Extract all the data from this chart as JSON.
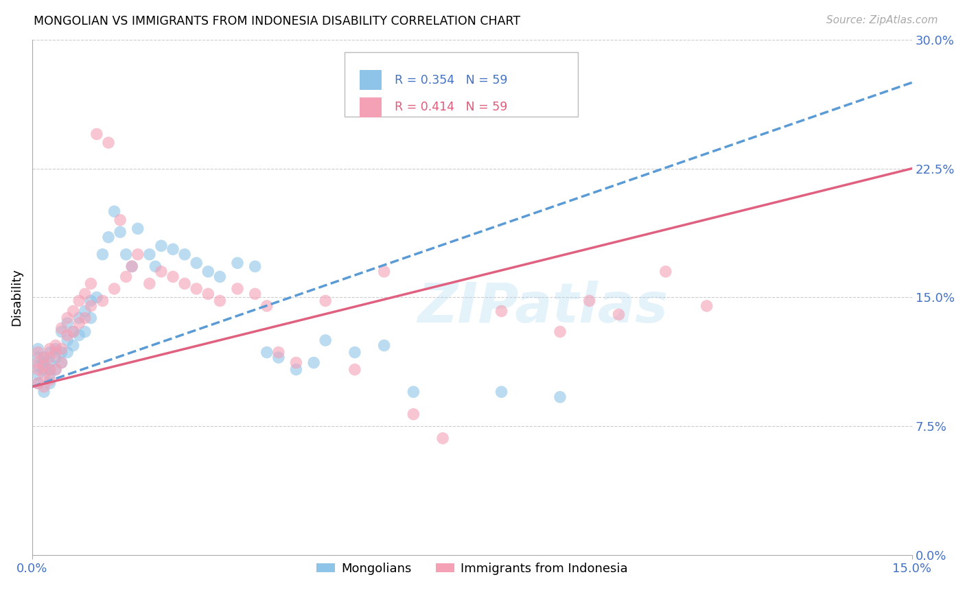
{
  "title": "MONGOLIAN VS IMMIGRANTS FROM INDONESIA DISABILITY CORRELATION CHART",
  "source": "Source: ZipAtlas.com",
  "ylabel": "Disability",
  "x_min": 0.0,
  "x_max": 0.15,
  "y_min": 0.0,
  "y_max": 0.3,
  "x_tick_positions": [
    0.0,
    0.15
  ],
  "x_tick_labels": [
    "0.0%",
    "15.0%"
  ],
  "y_ticks_right": [
    0.0,
    0.075,
    0.15,
    0.225,
    0.3
  ],
  "y_tick_labels_right": [
    "0.0%",
    "7.5%",
    "15.0%",
    "22.5%",
    "30.0%"
  ],
  "legend_r1": "0.354",
  "legend_n1": "59",
  "legend_r2": "0.414",
  "legend_n2": "59",
  "color_blue": "#8ec4e8",
  "color_pink": "#f4a0b5",
  "color_blue_line": "#5b9bd5",
  "color_pink_line": "#e06080",
  "color_blue_text": "#4472c4",
  "color_pink_text": "#e05a7a",
  "grid_color": "#cccccc",
  "watermark": "ZIPatlas",
  "mongolians_label": "Mongolians",
  "indonesia_label": "Immigrants from Indonesia",
  "blue_line_x0": 0.0,
  "blue_line_y0": 0.098,
  "blue_line_x1": 0.15,
  "blue_line_y1": 0.275,
  "pink_line_x0": 0.0,
  "pink_line_y0": 0.098,
  "pink_line_x1": 0.15,
  "pink_line_y1": 0.225,
  "blue_scatter_x": [
    0.001,
    0.001,
    0.001,
    0.001,
    0.001,
    0.002,
    0.002,
    0.002,
    0.002,
    0.003,
    0.003,
    0.003,
    0.003,
    0.003,
    0.004,
    0.004,
    0.004,
    0.005,
    0.005,
    0.005,
    0.006,
    0.006,
    0.006,
    0.007,
    0.007,
    0.008,
    0.008,
    0.009,
    0.009,
    0.01,
    0.01,
    0.011,
    0.012,
    0.013,
    0.014,
    0.015,
    0.016,
    0.017,
    0.018,
    0.02,
    0.021,
    0.022,
    0.024,
    0.026,
    0.028,
    0.03,
    0.032,
    0.035,
    0.038,
    0.04,
    0.042,
    0.045,
    0.048,
    0.05,
    0.055,
    0.06,
    0.065,
    0.08,
    0.09
  ],
  "blue_scatter_y": [
    0.115,
    0.11,
    0.12,
    0.105,
    0.1,
    0.112,
    0.108,
    0.115,
    0.095,
    0.118,
    0.112,
    0.108,
    0.105,
    0.1,
    0.12,
    0.115,
    0.108,
    0.13,
    0.118,
    0.112,
    0.135,
    0.125,
    0.118,
    0.13,
    0.122,
    0.138,
    0.128,
    0.142,
    0.13,
    0.148,
    0.138,
    0.15,
    0.175,
    0.185,
    0.2,
    0.188,
    0.175,
    0.168,
    0.19,
    0.175,
    0.168,
    0.18,
    0.178,
    0.175,
    0.17,
    0.165,
    0.162,
    0.17,
    0.168,
    0.118,
    0.115,
    0.108,
    0.112,
    0.125,
    0.118,
    0.122,
    0.095,
    0.095,
    0.092
  ],
  "pink_scatter_x": [
    0.001,
    0.001,
    0.001,
    0.001,
    0.002,
    0.002,
    0.002,
    0.002,
    0.003,
    0.003,
    0.003,
    0.003,
    0.004,
    0.004,
    0.004,
    0.005,
    0.005,
    0.005,
    0.006,
    0.006,
    0.007,
    0.007,
    0.008,
    0.008,
    0.009,
    0.009,
    0.01,
    0.01,
    0.011,
    0.012,
    0.013,
    0.014,
    0.015,
    0.016,
    0.017,
    0.018,
    0.02,
    0.022,
    0.024,
    0.026,
    0.028,
    0.03,
    0.032,
    0.035,
    0.038,
    0.04,
    0.042,
    0.045,
    0.05,
    0.055,
    0.06,
    0.065,
    0.07,
    0.08,
    0.09,
    0.095,
    0.1,
    0.108,
    0.115
  ],
  "pink_scatter_y": [
    0.118,
    0.112,
    0.108,
    0.1,
    0.115,
    0.11,
    0.105,
    0.098,
    0.12,
    0.115,
    0.108,
    0.102,
    0.122,
    0.118,
    0.108,
    0.132,
    0.12,
    0.112,
    0.138,
    0.128,
    0.142,
    0.13,
    0.148,
    0.135,
    0.152,
    0.138,
    0.158,
    0.145,
    0.245,
    0.148,
    0.24,
    0.155,
    0.195,
    0.162,
    0.168,
    0.175,
    0.158,
    0.165,
    0.162,
    0.158,
    0.155,
    0.152,
    0.148,
    0.155,
    0.152,
    0.145,
    0.118,
    0.112,
    0.148,
    0.108,
    0.165,
    0.082,
    0.068,
    0.142,
    0.13,
    0.148,
    0.14,
    0.165,
    0.145
  ]
}
